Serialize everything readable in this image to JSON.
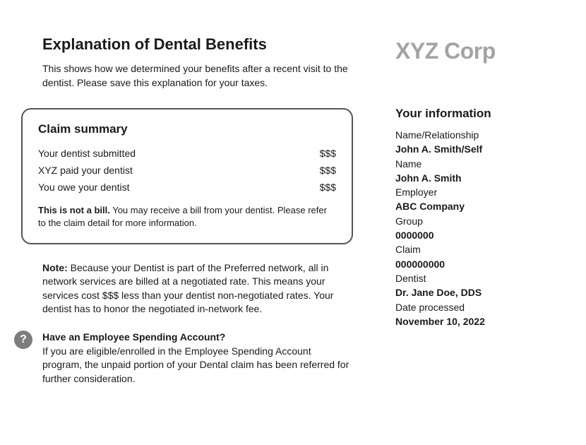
{
  "header": {
    "title": "Explanation of Dental Benefits",
    "intro": "This shows how we determined your benefits after a recent visit to the dentist. Please save this explanation for your taxes.",
    "corp_name": "XYZ Corp"
  },
  "claim": {
    "title": "Claim summary",
    "rows": [
      {
        "label": "Your dentist submitted",
        "value": "$$$"
      },
      {
        "label": "XYZ paid your dentist",
        "value": "$$$"
      },
      {
        "label": "You owe your dentist",
        "value": "$$$"
      }
    ],
    "not_bill_bold": "This is not a bill.",
    "not_bill_rest": " You may receive a bill from your dentist. Please refer to the claim detail for more information."
  },
  "note": {
    "bold": "Note:",
    "text": " Because your Dentist is part of the Preferred network, all in network services are billed at a negotiated rate. This means your services cost $$$ less than your dentist non-negotiated rates. Your dentist has to honor the negotiated in-network fee."
  },
  "esa": {
    "icon": "?",
    "title": "Have an Employee Spending Account?",
    "body": "If you are eligible/enrolled in the Employee Spending Account program, the unpaid portion of your Dental claim has been referred for further consideration."
  },
  "info": {
    "title": "Your information",
    "fields": [
      {
        "label": "Name/Relationship",
        "value": "John A. Smith/Self"
      },
      {
        "label": "Name",
        "value": "John A. Smith"
      },
      {
        "label": "Employer",
        "value": "ABC Company"
      },
      {
        "label": "Group",
        "value": "0000000"
      },
      {
        "label": "Claim",
        "value": "000000000"
      },
      {
        "label": "Dentist",
        "value": "Dr. Jane Doe, DDS"
      },
      {
        "label": "Date processed",
        "value": "November 10, 2022"
      }
    ]
  },
  "style": {
    "text_color": "#1a1a1a",
    "corp_color": "#a3a3a3",
    "icon_bg": "#7d7d7d",
    "border_color": "#555555",
    "background": "#ffffff"
  }
}
